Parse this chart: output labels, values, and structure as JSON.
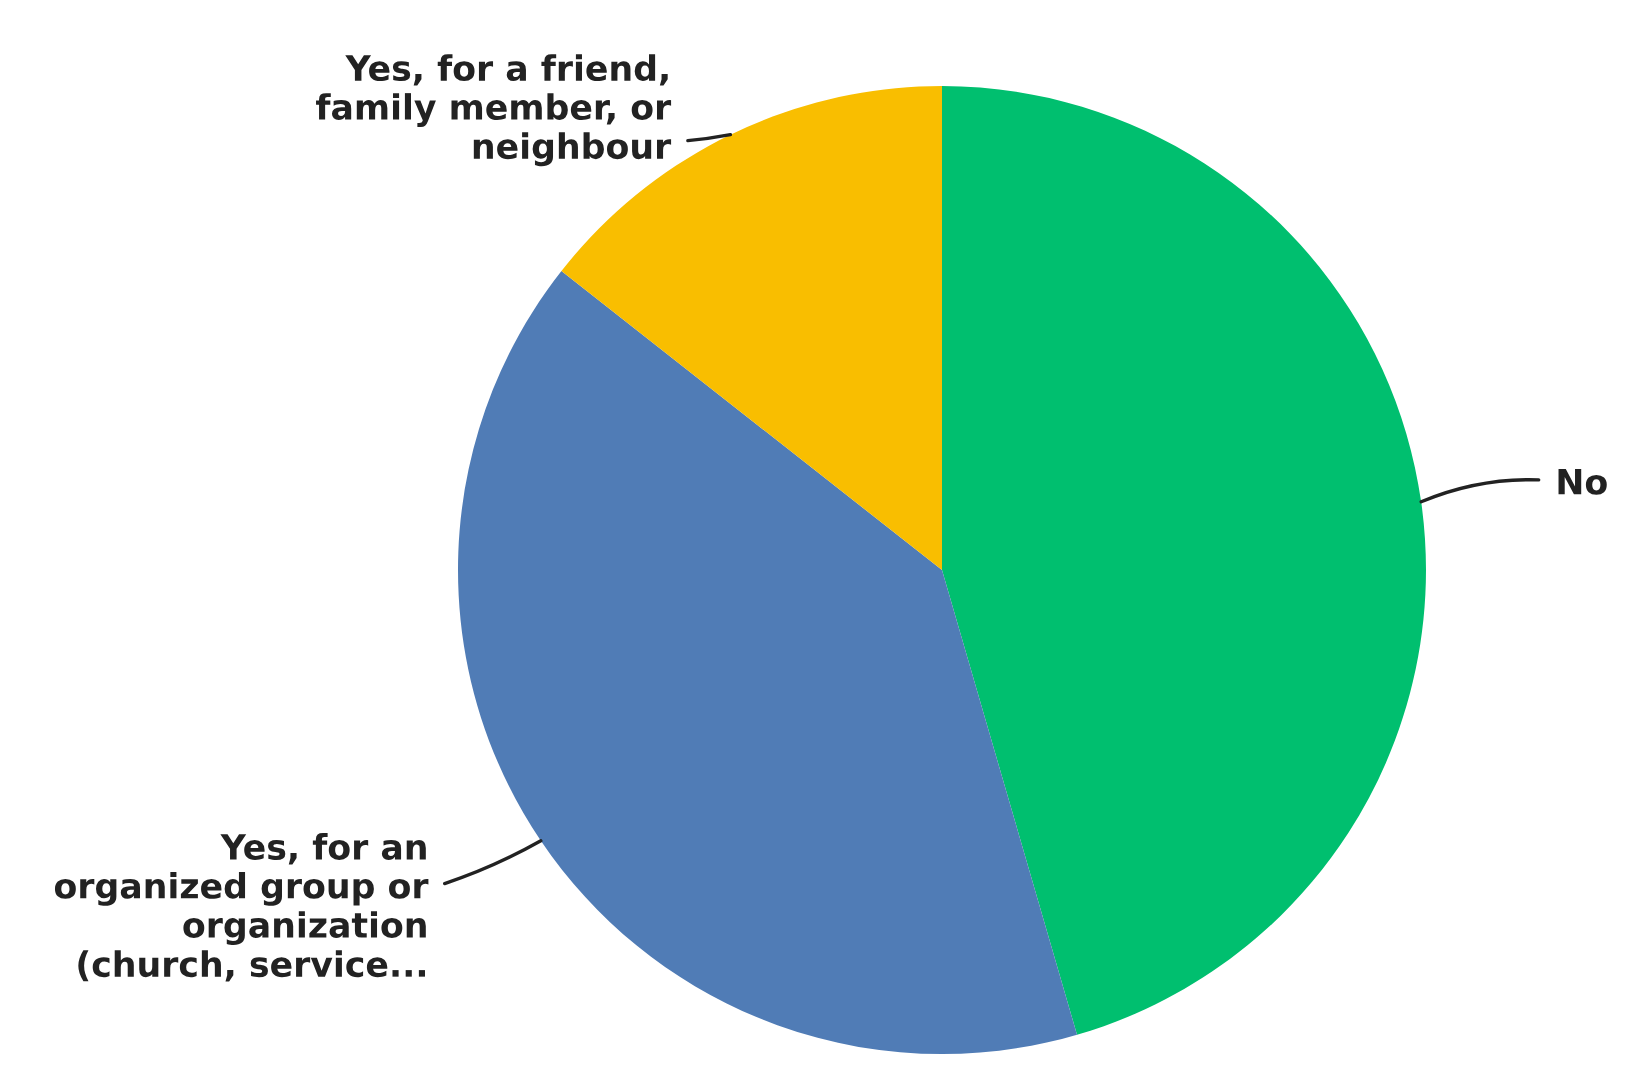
{
  "chart_data": {
    "type": "pie",
    "categories": [
      "No",
      "Yes, for an\norganized group or\norganization\n(church, service...",
      "Yes, for a friend,\nfamily member, or\nneighbour"
    ],
    "values": [
      45.5,
      40.1,
      14.4
    ],
    "colors": [
      "#00bf6f",
      "#507cb6",
      "#f9be00"
    ]
  }
}
